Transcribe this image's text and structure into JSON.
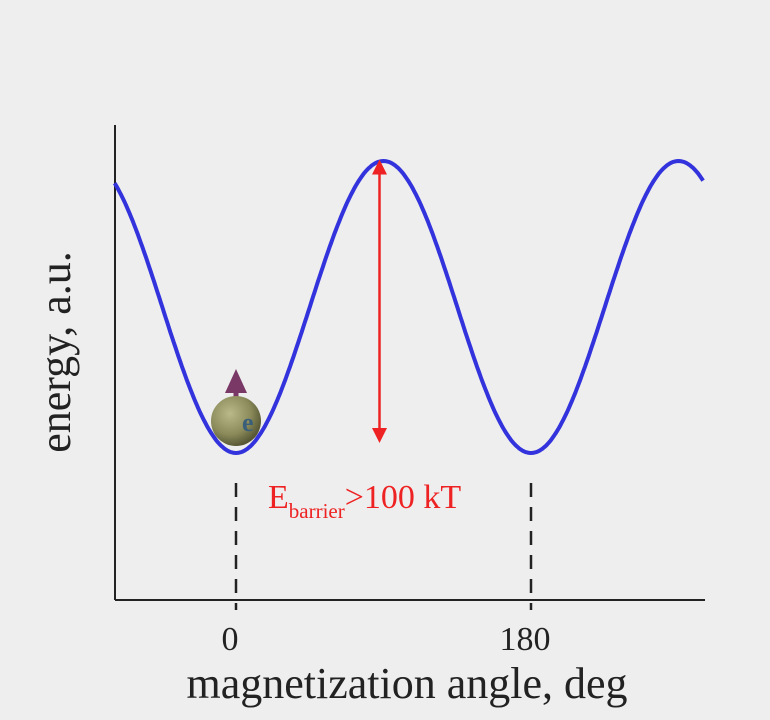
{
  "chart_data": {
    "type": "line",
    "title": "",
    "xlabel": "magnetization angle, deg",
    "ylabel": "energy, a.u.",
    "x_ticks": [
      {
        "value": 0,
        "label": "0"
      },
      {
        "value": 180,
        "label": "180"
      }
    ],
    "xlim": [
      -74,
      285
    ],
    "ylim": [
      -0.33,
      1.11
    ],
    "grid": false,
    "legend": "none",
    "series": [
      {
        "color": "#3333dd",
        "function": "sin^2(angle)",
        "x_start": -74,
        "x_end": 285,
        "minima_x": [
          0,
          180
        ],
        "maxima_x": [
          90,
          270
        ]
      }
    ],
    "annotations": {
      "barrier": {
        "main": "E",
        "subscript": "barrier",
        "tail": ">100 kT",
        "color": "#ee2222",
        "arrow_x": 90,
        "from_y": 0.06,
        "to_y": 1.0
      },
      "dashed_markers_x": [
        0,
        180
      ],
      "particle": {
        "x": 0,
        "spin_icon": "magnetic-moment-arrow-icon",
        "sphere_color": "#8a8a5a",
        "arrow_color": "#7a3866",
        "label": "e"
      }
    }
  }
}
